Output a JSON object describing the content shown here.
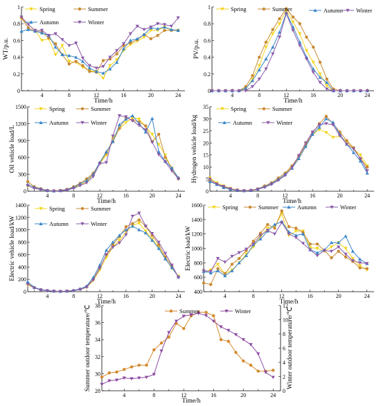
{
  "colors": {
    "Spring": "#f2d41c",
    "Summer": "#c98a33",
    "Autumn": "#3a86c8",
    "Winter": "#8a5aa8",
    "Winter_temp": "#8b4aa0",
    "Summer_temp": "#d4892c"
  },
  "markers": {
    "Spring": "triangle-down",
    "Summer": "circle",
    "Autumn": "triangle-up",
    "Winter": "triangle-down"
  },
  "chart_data": [
    {
      "id": "wt",
      "type": "line",
      "ylabel": "WT/p.u.",
      "xlabel": "Time/h",
      "ylim": [
        0,
        1.0
      ],
      "yticks": [
        0,
        0.2,
        0.4,
        0.6,
        0.8,
        1.0
      ],
      "xticks": [
        4,
        8,
        12,
        16,
        20,
        24
      ],
      "legend": [
        "Spring",
        "Summer",
        "Autumn",
        "Winter"
      ],
      "series": [
        {
          "name": "Spring",
          "values": [
            0.86,
            0.79,
            0.72,
            0.6,
            0.62,
            0.43,
            0.54,
            0.35,
            0.34,
            0.28,
            0.24,
            0.23,
            0.15,
            0.3,
            0.37,
            0.48,
            0.55,
            0.59,
            0.64,
            0.72,
            0.72,
            0.76,
            0.72,
            0.72
          ]
        },
        {
          "name": "Summer",
          "values": [
            0.87,
            0.75,
            0.71,
            0.7,
            0.63,
            0.56,
            0.43,
            0.32,
            0.35,
            0.3,
            0.23,
            0.22,
            0.36,
            0.38,
            0.44,
            0.54,
            0.57,
            0.61,
            0.67,
            0.62,
            0.66,
            0.72,
            0.72,
            0.72
          ]
        },
        {
          "name": "Autumn",
          "values": [
            0.71,
            0.73,
            0.71,
            0.69,
            0.66,
            0.52,
            0.43,
            0.42,
            0.4,
            0.35,
            0.27,
            0.23,
            0.21,
            0.26,
            0.34,
            0.5,
            0.6,
            0.62,
            0.67,
            0.75,
            0.74,
            0.76,
            0.73,
            0.72
          ]
        },
        {
          "name": "Winter",
          "values": [
            0.88,
            0.79,
            0.72,
            0.72,
            0.66,
            0.68,
            0.61,
            0.54,
            0.57,
            0.39,
            0.3,
            0.27,
            0.29,
            0.4,
            0.48,
            0.56,
            0.68,
            0.77,
            0.73,
            0.76,
            0.8,
            0.79,
            0.77,
            0.87
          ]
        }
      ]
    },
    {
      "id": "pv",
      "type": "line",
      "ylabel": "PV/p.u.",
      "xlabel": "Time/h",
      "ylim": [
        0,
        1.0
      ],
      "yticks": [
        0,
        0.2,
        0.4,
        0.6,
        0.8,
        1.0
      ],
      "xticks": [
        4,
        8,
        12,
        16,
        20,
        24
      ],
      "legend": [
        "Spring",
        "Summer",
        "Autumn",
        "Winter"
      ],
      "series": [
        {
          "name": "Spring",
          "values": [
            0,
            0,
            0,
            0,
            0,
            0.02,
            0.14,
            0.3,
            0.52,
            0.68,
            0.8,
            0.96,
            0.82,
            0.68,
            0.48,
            0.34,
            0.2,
            0.06,
            0,
            0,
            0,
            0,
            0,
            0
          ]
        },
        {
          "name": "Summer",
          "values": [
            0,
            0,
            0,
            0,
            0,
            0.05,
            0.18,
            0.4,
            0.58,
            0.73,
            0.86,
            0.98,
            0.88,
            0.8,
            0.64,
            0.52,
            0.34,
            0.14,
            0.02,
            0,
            0,
            0,
            0,
            0
          ]
        },
        {
          "name": "Autumn",
          "values": [
            0,
            0,
            0,
            0,
            0,
            0.03,
            0.12,
            0.25,
            0.38,
            0.52,
            0.7,
            0.93,
            0.76,
            0.58,
            0.4,
            0.26,
            0.16,
            0.1,
            0,
            0,
            0,
            0,
            0,
            0
          ]
        },
        {
          "name": "Winter",
          "values": [
            0,
            0,
            0,
            0,
            0,
            0,
            0.05,
            0.14,
            0.26,
            0.44,
            0.64,
            0.92,
            0.72,
            0.54,
            0.38,
            0.22,
            0.1,
            0.02,
            0,
            0,
            0,
            0,
            0,
            0
          ]
        }
      ]
    },
    {
      "id": "oil",
      "type": "line",
      "ylabel": "Oil vehicle load/L",
      "xlabel": "Time/h",
      "ylim": [
        0,
        1500
      ],
      "yticks": [
        0,
        300,
        600,
        900,
        1200,
        1500
      ],
      "xticks": [
        4,
        8,
        12,
        16,
        20,
        24
      ],
      "legend": [
        "Spring",
        "Summer",
        "Autumn",
        "Winter"
      ],
      "series": [
        {
          "name": "Spring",
          "values": [
            90,
            60,
            35,
            10,
            5,
            10,
            25,
            60,
            110,
            170,
            290,
            490,
            640,
            940,
            1100,
            1220,
            1300,
            1280,
            1150,
            1010,
            830,
            640,
            390,
            230
          ]
        },
        {
          "name": "Summer",
          "values": [
            170,
            80,
            45,
            15,
            5,
            15,
            35,
            80,
            140,
            220,
            320,
            500,
            680,
            880,
            1120,
            1300,
            1260,
            1230,
            1160,
            880,
            1010,
            600,
            410,
            220
          ]
        },
        {
          "name": "Autumn",
          "values": [
            120,
            70,
            40,
            12,
            5,
            10,
            30,
            70,
            130,
            190,
            300,
            510,
            700,
            880,
            1180,
            1280,
            1340,
            1200,
            1050,
            1290,
            700,
            530,
            410,
            240
          ]
        },
        {
          "name": "Winter",
          "values": [
            100,
            50,
            30,
            8,
            3,
            8,
            20,
            50,
            100,
            150,
            260,
            490,
            510,
            980,
            1340,
            1320,
            1250,
            1170,
            1090,
            870,
            650,
            520,
            360,
            220
          ]
        }
      ]
    },
    {
      "id": "h2",
      "type": "line",
      "ylabel": "Hydrogen vehicle load/kg",
      "xlabel": "Time/h",
      "ylim": [
        0,
        35
      ],
      "yticks": [
        0,
        5,
        10,
        15,
        20,
        25,
        30,
        35
      ],
      "xticks": [
        4,
        8,
        12,
        16,
        20,
        24
      ],
      "legend": [
        "Spring",
        "Summer",
        "Autumn",
        "Winter"
      ],
      "series": [
        {
          "name": "Spring",
          "values": [
            5.5,
            3.5,
            2.2,
            1.2,
            0.5,
            0.2,
            0.3,
            0.8,
            1.8,
            3.0,
            4.8,
            7.0,
            10.0,
            14.0,
            19.5,
            23.5,
            25.5,
            24.3,
            22.3,
            22.8,
            20.5,
            17.5,
            15.0,
            10.5
          ]
        },
        {
          "name": "Summer",
          "values": [
            4.2,
            3.0,
            1.8,
            0.9,
            0.4,
            0.2,
            0.4,
            1.0,
            2.2,
            3.5,
            5.5,
            7.5,
            10.5,
            14.5,
            19.0,
            24.0,
            28.0,
            31.0,
            28.0,
            24.5,
            21.0,
            18.0,
            13.5,
            10.0
          ]
        },
        {
          "name": "Autumn",
          "values": [
            4.0,
            2.8,
            1.5,
            0.8,
            0.3,
            0.2,
            0.3,
            0.9,
            1.9,
            3.2,
            4.9,
            7.0,
            9.5,
            13.5,
            18.5,
            23.5,
            26.5,
            30.0,
            28.5,
            23.5,
            19.5,
            16.0,
            12.5,
            7.5
          ]
        },
        {
          "name": "Winter",
          "values": [
            5.0,
            3.0,
            2.0,
            1.0,
            0.4,
            0.2,
            0.3,
            0.8,
            1.6,
            2.8,
            4.5,
            6.5,
            9.8,
            14.8,
            20.0,
            24.5,
            27.5,
            28.0,
            27.5,
            23.0,
            19.5,
            17.5,
            13.5,
            8.5
          ]
        }
      ]
    },
    {
      "id": "ev",
      "type": "line",
      "ylabel": "Electric vehicle load/kW",
      "xlabel": "Time/h",
      "ylim": [
        0,
        1400
      ],
      "yticks": [
        0,
        200,
        400,
        600,
        800,
        1000,
        1200,
        1400
      ],
      "xticks": [
        4,
        8,
        12,
        16,
        20,
        24
      ],
      "legend": [
        "Spring",
        "Summer",
        "Autumn",
        "Winter"
      ],
      "series": [
        {
          "name": "Spring",
          "values": [
            110,
            60,
            30,
            15,
            8,
            5,
            8,
            15,
            35,
            70,
            180,
            350,
            550,
            720,
            830,
            960,
            1070,
            1110,
            980,
            850,
            720,
            540,
            380,
            250
          ]
        },
        {
          "name": "Summer",
          "values": [
            130,
            65,
            30,
            15,
            8,
            5,
            8,
            18,
            40,
            80,
            200,
            390,
            600,
            760,
            890,
            1050,
            1100,
            1160,
            1060,
            910,
            760,
            560,
            420,
            240
          ]
        },
        {
          "name": "Autumn",
          "values": [
            160,
            70,
            35,
            18,
            10,
            6,
            10,
            20,
            45,
            90,
            230,
            430,
            670,
            800,
            910,
            1000,
            1060,
            1000,
            950,
            830,
            700,
            530,
            390,
            240
          ]
        },
        {
          "name": "Winter",
          "values": [
            120,
            60,
            28,
            14,
            7,
            4,
            7,
            15,
            35,
            75,
            190,
            380,
            600,
            720,
            790,
            920,
            1220,
            1270,
            1060,
            940,
            800,
            620,
            430,
            230
          ]
        }
      ]
    },
    {
      "id": "el",
      "type": "line",
      "ylabel": "Electric load/kW",
      "xlabel": "Time/h",
      "ylim": [
        400,
        1600
      ],
      "yticks": [
        400,
        600,
        800,
        1000,
        1200,
        1400,
        1600
      ],
      "xticks": [
        4,
        8,
        12,
        16,
        20,
        24
      ],
      "legend": [
        "Spring",
        "Summer",
        "Autumn",
        "Winter"
      ],
      "series": [
        {
          "name": "Spring",
          "values": [
            680,
            700,
            780,
            650,
            700,
            800,
            920,
            1020,
            1160,
            1280,
            1300,
            1480,
            1180,
            1240,
            1240,
            1010,
            1000,
            960,
            1020,
            1080,
            1000,
            860,
            760,
            700
          ]
        },
        {
          "name": "Summer",
          "values": [
            520,
            500,
            720,
            650,
            780,
            860,
            970,
            1100,
            1210,
            1330,
            1280,
            1520,
            1300,
            1280,
            1220,
            1060,
            1060,
            970,
            870,
            960,
            880,
            820,
            730,
            720
          ]
        },
        {
          "name": "Autumn",
          "values": [
            680,
            660,
            690,
            620,
            690,
            800,
            900,
            1050,
            1130,
            1240,
            1330,
            1370,
            1230,
            1180,
            1200,
            980,
            940,
            980,
            1080,
            1080,
            1170,
            960,
            850,
            790
          ]
        },
        {
          "name": "Winter",
          "values": [
            690,
            680,
            860,
            810,
            890,
            940,
            990,
            1060,
            1180,
            1250,
            1200,
            1360,
            1200,
            1150,
            1070,
            980,
            900,
            970,
            960,
            1020,
            920,
            830,
            800,
            790
          ]
        }
      ]
    },
    {
      "id": "temp",
      "type": "line",
      "xlabel": "Time/h",
      "ylabel": "Summer outdoor temperature/℃",
      "ylabel_right": "Winter outdoor temperature/℃",
      "ylim": [
        28,
        38
      ],
      "yticks": [
        28,
        30,
        32,
        34,
        36,
        38
      ],
      "ylim_right": [
        0,
        12
      ],
      "yticks_right": [
        0,
        2,
        4,
        6,
        8,
        10,
        12
      ],
      "xticks": [
        4,
        8,
        12,
        16,
        20,
        24
      ],
      "legend": [
        "Summer",
        "Winter"
      ],
      "series": [
        {
          "name": "Summer",
          "axis": "left",
          "values": [
            29.6,
            30.1,
            30.2,
            30.5,
            30.8,
            31.0,
            31.0,
            32.8,
            33.6,
            34.3,
            35.9,
            35.3,
            36.8,
            37.2,
            37.2,
            36.8,
            34.0,
            33.8,
            32.5,
            31.5,
            31.0,
            30.3,
            30.3,
            30.4
          ]
        },
        {
          "name": "Winter",
          "axis": "right",
          "values": [
            0.9,
            1.4,
            1.5,
            1.8,
            1.7,
            1.8,
            1.9,
            2.3,
            5.6,
            8.2,
            9.8,
            10.5,
            10.7,
            10.9,
            10.6,
            9.8,
            9.0,
            8.5,
            7.9,
            7.2,
            6.5,
            5.2,
            2.6,
            1.9
          ]
        }
      ]
    }
  ]
}
